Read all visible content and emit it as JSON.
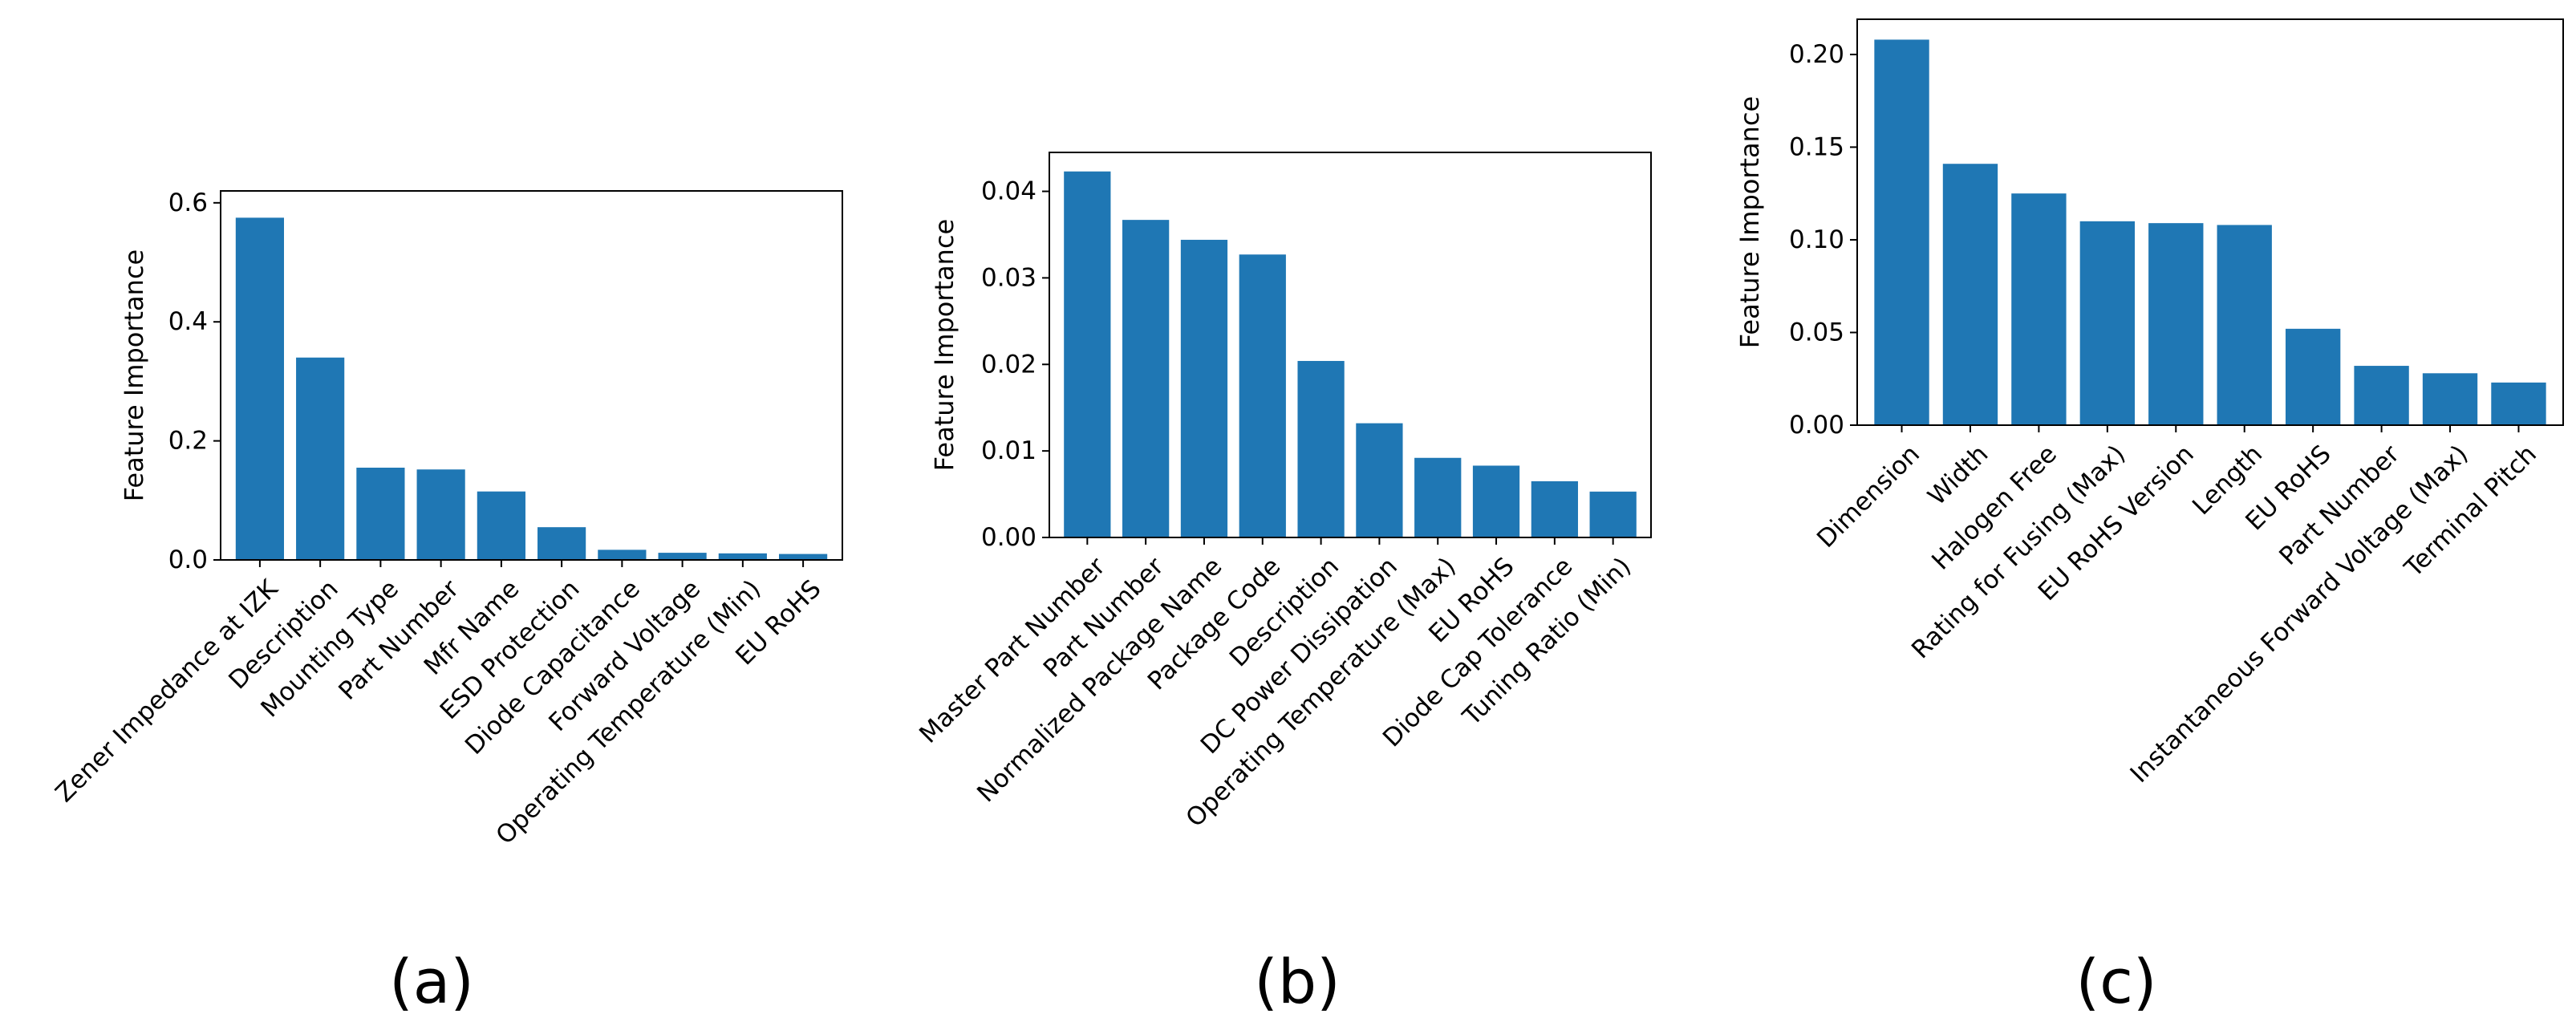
{
  "chart_data": [
    {
      "type": "bar",
      "caption": "(a)",
      "ylabel": "Feature Importance",
      "xlabel": "",
      "ylim": [
        0,
        0.62
      ],
      "yticks": [
        0.0,
        0.2,
        0.4,
        0.6
      ],
      "ytick_labels": [
        "0.0",
        "0.2",
        "0.4",
        "0.6"
      ],
      "categories": [
        "Zener Impedance at IZK",
        "Description",
        "Mounting Type",
        "Part Number",
        "Mfr Name",
        "ESD Protection",
        "Diode Capacitance",
        "Forward Voltage",
        "Operating Temperature (Min)",
        "EU RoHS"
      ],
      "values": [
        0.575,
        0.34,
        0.155,
        0.152,
        0.115,
        0.055,
        0.017,
        0.012,
        0.011,
        0.01
      ],
      "color": "#1f77b4",
      "grid": false
    },
    {
      "type": "bar",
      "caption": "(b)",
      "ylabel": "Feature Importance",
      "xlabel": "",
      "ylim": [
        0,
        0.0445
      ],
      "yticks": [
        0.0,
        0.01,
        0.02,
        0.03,
        0.04
      ],
      "ytick_labels": [
        "0.00",
        "0.01",
        "0.02",
        "0.03",
        "0.04"
      ],
      "categories": [
        "Master Part Number",
        "Part Number",
        "Normalized Package Name",
        "Package Code",
        "Description",
        "DC Power Dissipation",
        "Operating Temperature (Max)",
        "EU RoHS",
        "Diode Cap Tolerance",
        "Tuning Ratio (Min)"
      ],
      "values": [
        0.0423,
        0.0367,
        0.0344,
        0.0327,
        0.0204,
        0.0132,
        0.0092,
        0.0083,
        0.0065,
        0.0053
      ],
      "color": "#1f77b4",
      "grid": false
    },
    {
      "type": "bar",
      "caption": "(c)",
      "ylabel": "Feature Importance",
      "xlabel": "",
      "ylim": [
        0,
        0.219
      ],
      "yticks": [
        0.0,
        0.05,
        0.1,
        0.15,
        0.2
      ],
      "ytick_labels": [
        "0.00",
        "0.05",
        "0.10",
        "0.15",
        "0.20"
      ],
      "categories": [
        "Dimension",
        "Width",
        "Halogen Free",
        "Rating for Fusing (Max)",
        "EU RoHS Version",
        "Length",
        "EU RoHS",
        "Part Number",
        "Instantaneous Forward Voltage (Max)",
        "Terminal Pitch"
      ],
      "values": [
        0.208,
        0.141,
        0.125,
        0.11,
        0.109,
        0.108,
        0.052,
        0.032,
        0.028,
        0.023
      ],
      "color": "#1f77b4",
      "grid": false
    }
  ]
}
